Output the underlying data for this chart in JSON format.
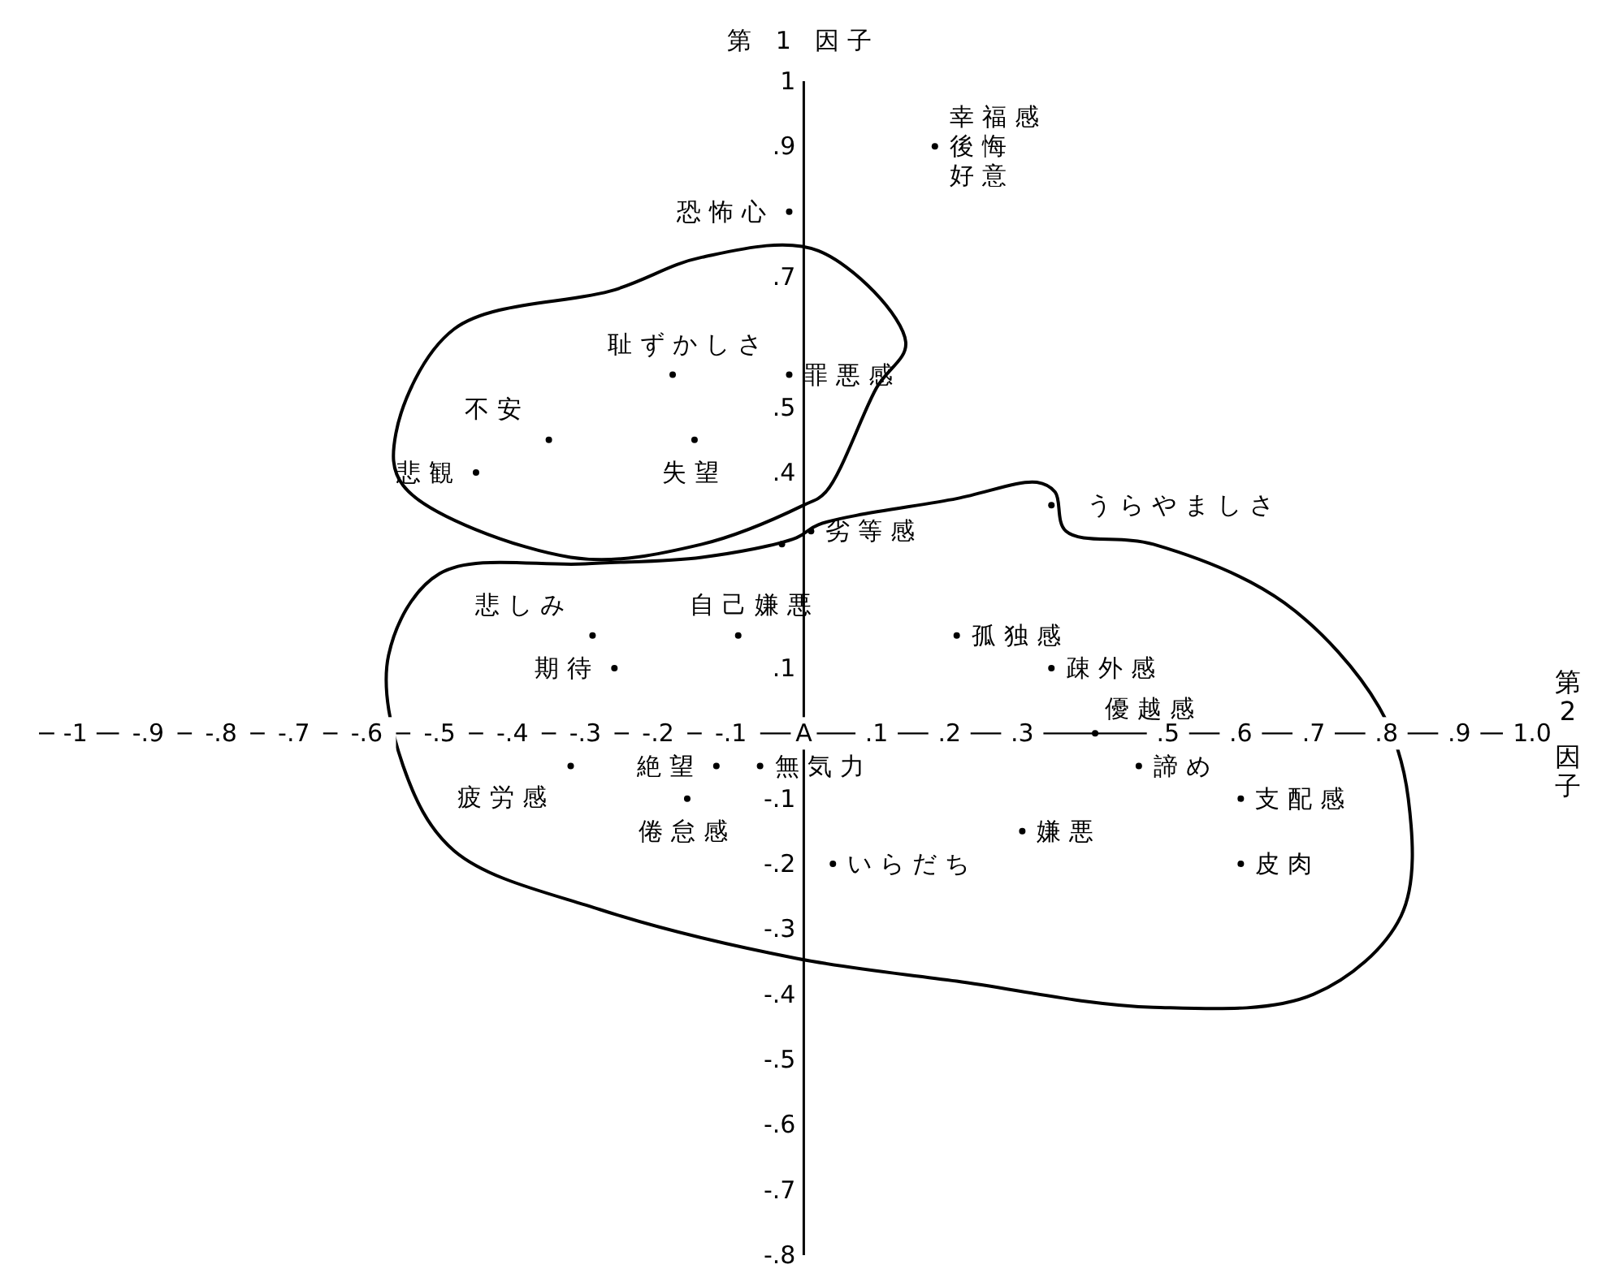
{
  "chart_data": {
    "type": "scatter",
    "xlabel": "第2因子",
    "ylabel": "第 1 因子",
    "xlim": [
      -1.05,
      1.0
    ],
    "ylim": [
      -0.8,
      1.0
    ],
    "xticks": [
      -1,
      {
        "value": -0.9,
        "label": "-.9"
      },
      {
        "value": -0.8,
        "label": "-.8"
      },
      {
        "value": -0.7,
        "label": "-.7"
      },
      {
        "value": -0.6,
        "label": "-.6"
      },
      {
        "value": -0.5,
        "label": "-.5"
      },
      {
        "value": -0.4,
        "label": "-.4"
      },
      {
        "value": -0.3,
        "label": "-.3"
      },
      {
        "value": -0.2,
        "label": "-.2"
      },
      {
        "value": -0.1,
        "label": "-.1"
      },
      {
        "value": 0,
        "label": "A"
      },
      {
        "value": 0.1,
        "label": ".1"
      },
      {
        "value": 0.2,
        "label": ".2"
      },
      {
        "value": 0.3,
        "label": ".3"
      },
      {
        "value": 0.5,
        "label": ".5"
      },
      {
        "value": 0.6,
        "label": ".6"
      },
      {
        "value": 0.7,
        "label": ".7"
      },
      {
        "value": 0.8,
        "label": ".8"
      },
      {
        "value": 0.9,
        "label": ".9"
      },
      {
        "value": 1.0,
        "label": "1.0"
      }
    ],
    "yticks": [
      1,
      {
        "value": 0.9,
        "label": ".9"
      },
      {
        "value": 0.7,
        "label": ".7"
      },
      {
        "value": 0.5,
        "label": ".5"
      },
      {
        "value": 0.4,
        "label": ".4"
      },
      {
        "value": 0.1,
        "label": ".1"
      },
      {
        "value": -0.1,
        "label": "-.1"
      },
      {
        "value": -0.2,
        "label": "-.2"
      },
      {
        "value": -0.3,
        "label": "-.3"
      },
      {
        "value": -0.4,
        "label": "-.4"
      },
      {
        "value": -0.5,
        "label": "-.5"
      },
      {
        "value": -0.6,
        "label": "-.6"
      },
      {
        "value": -0.7,
        "label": "-.7"
      },
      {
        "value": -0.8,
        "label": "-.8"
      }
    ],
    "marker": "circle",
    "series": [
      {
        "color": "#000000",
        "x": [
          0.18,
          -0.02,
          -0.18,
          -0.02,
          -0.35,
          -0.15,
          -0.45,
          0.34,
          0.01,
          -0.03,
          -0.29,
          -0.09,
          0.21,
          -0.26,
          0.34,
          0.4,
          -0.32,
          -0.12,
          -0.06,
          -0.16,
          0.46,
          0.6,
          0.3,
          0.04,
          0.6
        ],
        "values": [
          0.9,
          0.8,
          0.55,
          0.55,
          0.45,
          0.45,
          0.4,
          0.35,
          0.31,
          0.29,
          0.15,
          0.15,
          0.15,
          0.1,
          0.1,
          0,
          -0.05,
          -0.05,
          -0.05,
          -0.1,
          -0.05,
          -0.1,
          -0.15,
          -0.2,
          -0.2
        ]
      }
    ],
    "annotations": [
      {
        "text": "幸福感",
        "x": 0.18,
        "y": 0.9
      },
      {
        "text": "後悔",
        "x": 0.18,
        "y": 0.9
      },
      {
        "text": "好意",
        "x": 0.18,
        "y": 0.9
      },
      {
        "text": "恐怖心",
        "x": -0.02,
        "y": 0.8
      },
      {
        "text": "耻ずかしさ",
        "x": -0.18,
        "y": 0.55
      },
      {
        "text": "罪悪感",
        "x": -0.02,
        "y": 0.55
      },
      {
        "text": "不安",
        "x": -0.35,
        "y": 0.45
      },
      {
        "text": "失望",
        "x": -0.15,
        "y": 0.45
      },
      {
        "text": "悲観",
        "x": -0.45,
        "y": 0.4
      },
      {
        "text": "うらやましさ",
        "x": 0.34,
        "y": 0.35
      },
      {
        "text": "劣等感",
        "x": 0.01,
        "y": 0.31
      },
      {
        "text": "悲しみ",
        "x": -0.29,
        "y": 0.15
      },
      {
        "text": "自己嫌悪",
        "x": -0.09,
        "y": 0.15
      },
      {
        "text": "孤独感",
        "x": 0.21,
        "y": 0.15
      },
      {
        "text": "期待",
        "x": -0.26,
        "y": 0.1
      },
      {
        "text": "疎外感",
        "x": 0.34,
        "y": 0.1
      },
      {
        "text": "優越感",
        "x": 0.4,
        "y": 0
      },
      {
        "text": "疲労感",
        "x": -0.32,
        "y": -0.05
      },
      {
        "text": "絶望",
        "x": -0.12,
        "y": -0.05
      },
      {
        "text": "無気力",
        "x": -0.06,
        "y": -0.05
      },
      {
        "text": "倦怠感",
        "x": -0.16,
        "y": -0.1
      },
      {
        "text": "諦め",
        "x": 0.46,
        "y": -0.05
      },
      {
        "text": "支配感",
        "x": 0.6,
        "y": -0.1
      },
      {
        "text": "嫌悪",
        "x": 0.3,
        "y": -0.15
      },
      {
        "text": "いらだち",
        "x": 0.04,
        "y": -0.2
      },
      {
        "text": "皮肉",
        "x": 0.6,
        "y": -0.2
      }
    ]
  }
}
